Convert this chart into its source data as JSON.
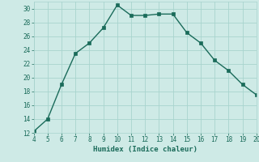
{
  "x": [
    4,
    5,
    6,
    7,
    8,
    9,
    10,
    11,
    12,
    13,
    14,
    15,
    16,
    17,
    18,
    19,
    20
  ],
  "y": [
    12.2,
    14.0,
    19.0,
    23.5,
    25.0,
    27.2,
    30.5,
    29.0,
    29.0,
    29.2,
    29.2,
    26.5,
    25.0,
    22.5,
    21.0,
    19.0,
    17.5
  ],
  "xlabel": "Humidex (Indice chaleur)",
  "xlim": [
    4,
    20
  ],
  "ylim": [
    12,
    31
  ],
  "yticks": [
    12,
    14,
    16,
    18,
    20,
    22,
    24,
    26,
    28,
    30
  ],
  "xticks": [
    4,
    5,
    6,
    7,
    8,
    9,
    10,
    11,
    12,
    13,
    14,
    15,
    16,
    17,
    18,
    19,
    20
  ],
  "line_color": "#1a6b5a",
  "marker_color": "#1a6b5a",
  "bg_color": "#ceeae6",
  "grid_color": "#a8d4ce",
  "tick_color": "#1a6b5a",
  "font_family": "monospace"
}
